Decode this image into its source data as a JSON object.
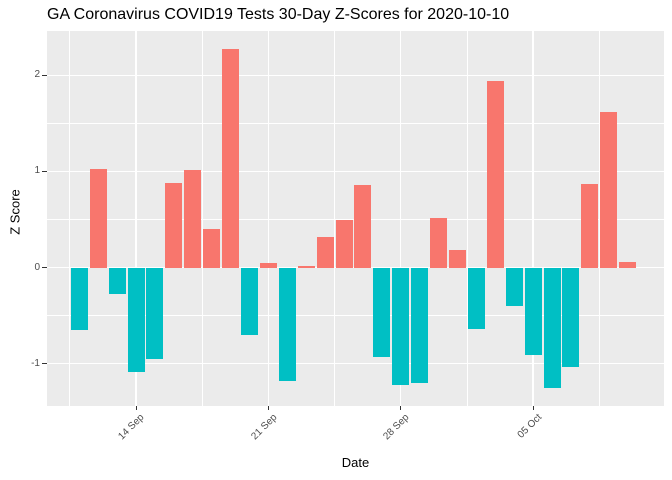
{
  "title": "GA Coronavirus COVID19 Tests 30-Day Z-Scores for 2020-10-10",
  "chart_data": {
    "type": "bar",
    "title": "GA Coronavirus COVID19 Tests 30-Day Z-Scores for 2020-10-10",
    "xlabel": "Date",
    "ylabel": "Z Score",
    "dates": [
      "2020-09-11",
      "2020-09-12",
      "2020-09-13",
      "2020-09-14",
      "2020-09-15",
      "2020-09-16",
      "2020-09-17",
      "2020-09-18",
      "2020-09-19",
      "2020-09-20",
      "2020-09-21",
      "2020-09-22",
      "2020-09-23",
      "2020-09-24",
      "2020-09-25",
      "2020-09-26",
      "2020-09-27",
      "2020-09-28",
      "2020-09-29",
      "2020-09-30",
      "2020-10-01",
      "2020-10-02",
      "2020-10-03",
      "2020-10-04",
      "2020-10-05",
      "2020-10-06",
      "2020-10-07",
      "2020-10-08",
      "2020-10-09",
      "2020-10-10"
    ],
    "values": [
      -0.65,
      1.03,
      -0.28,
      -1.09,
      -0.95,
      0.88,
      1.01,
      0.4,
      2.27,
      -0.7,
      0.05,
      -1.18,
      0.02,
      0.32,
      0.49,
      0.86,
      -0.93,
      -1.22,
      -1.2,
      0.52,
      0.18,
      -0.64,
      1.94,
      -0.4,
      -0.91,
      -1.25,
      -1.03,
      0.87,
      1.62,
      0.06
    ],
    "yticks": [
      2,
      1,
      0,
      -1
    ],
    "ytick_labels": [
      "2",
      "1",
      "0",
      "-1"
    ],
    "ylim": [
      -1.44,
      2.46
    ],
    "xticks": [
      {
        "label": "14 Sep",
        "index": 3
      },
      {
        "label": "21 Sep",
        "index": 10
      },
      {
        "label": "28 Sep",
        "index": 17
      },
      {
        "label": "05 Oct",
        "index": 24
      }
    ],
    "grid": "on",
    "legend": "none",
    "colors": {
      "positive": "#F8766D",
      "negative": "#00BFC4",
      "panel_bg": "#EBEBEB",
      "gridline": "#FFFFFF",
      "tick_text": "#4D4D4D",
      "tick_mark": "#333333",
      "axis_text": "#000000"
    }
  }
}
